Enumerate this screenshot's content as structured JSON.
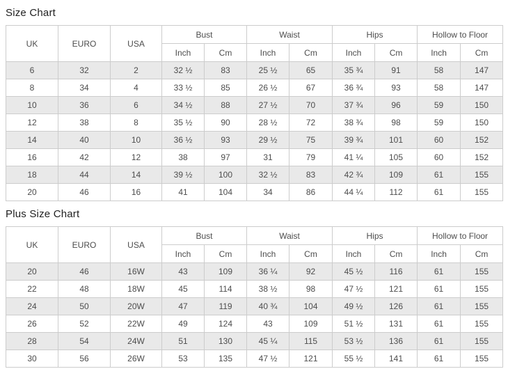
{
  "colors": {
    "stripe": "#e9e9e9",
    "border": "#cccccc",
    "text": "#4d4d4d",
    "title_text": "#1f1f1f",
    "row_alt": "#ffffff"
  },
  "tables": [
    {
      "title": "Size Chart",
      "plain_headers": [
        "UK",
        "EURO",
        "USA"
      ],
      "group_headers": [
        "Bust",
        "Waist",
        "Hips",
        "Hollow to Floor"
      ],
      "unit_headers": [
        "Inch",
        "Cm"
      ],
      "rows": [
        [
          "6",
          "32",
          "2",
          "32 ½",
          "83",
          "25 ½",
          "65",
          "35 ¾",
          "91",
          "58",
          "147"
        ],
        [
          "8",
          "34",
          "4",
          "33 ½",
          "85",
          "26 ½",
          "67",
          "36 ¾",
          "93",
          "58",
          "147"
        ],
        [
          "10",
          "36",
          "6",
          "34 ½",
          "88",
          "27 ½",
          "70",
          "37 ¾",
          "96",
          "59",
          "150"
        ],
        [
          "12",
          "38",
          "8",
          "35 ½",
          "90",
          "28 ½",
          "72",
          "38 ¾",
          "98",
          "59",
          "150"
        ],
        [
          "14",
          "40",
          "10",
          "36 ½",
          "93",
          "29 ½",
          "75",
          "39 ¾",
          "101",
          "60",
          "152"
        ],
        [
          "16",
          "42",
          "12",
          "38",
          "97",
          "31",
          "79",
          "41 ¼",
          "105",
          "60",
          "152"
        ],
        [
          "18",
          "44",
          "14",
          "39 ½",
          "100",
          "32 ½",
          "83",
          "42 ¾",
          "109",
          "61",
          "155"
        ],
        [
          "20",
          "46",
          "16",
          "41",
          "104",
          "34",
          "86",
          "44 ¼",
          "112",
          "61",
          "155"
        ]
      ]
    },
    {
      "title": "Plus Size Chart",
      "plain_headers": [
        "UK",
        "EURO",
        "USA"
      ],
      "group_headers": [
        "Bust",
        "Waist",
        "Hips",
        "Hollow to Floor"
      ],
      "unit_headers": [
        "Inch",
        "Cm"
      ],
      "rows": [
        [
          "20",
          "46",
          "16W",
          "43",
          "109",
          "36 ¼",
          "92",
          "45 ½",
          "116",
          "61",
          "155"
        ],
        [
          "22",
          "48",
          "18W",
          "45",
          "114",
          "38 ½",
          "98",
          "47 ½",
          "121",
          "61",
          "155"
        ],
        [
          "24",
          "50",
          "20W",
          "47",
          "119",
          "40 ¾",
          "104",
          "49 ½",
          "126",
          "61",
          "155"
        ],
        [
          "26",
          "52",
          "22W",
          "49",
          "124",
          "43",
          "109",
          "51 ½",
          "131",
          "61",
          "155"
        ],
        [
          "28",
          "54",
          "24W",
          "51",
          "130",
          "45 ¼",
          "115",
          "53 ½",
          "136",
          "61",
          "155"
        ],
        [
          "30",
          "56",
          "26W",
          "53",
          "135",
          "47 ½",
          "121",
          "55 ½",
          "141",
          "61",
          "155"
        ]
      ]
    }
  ]
}
